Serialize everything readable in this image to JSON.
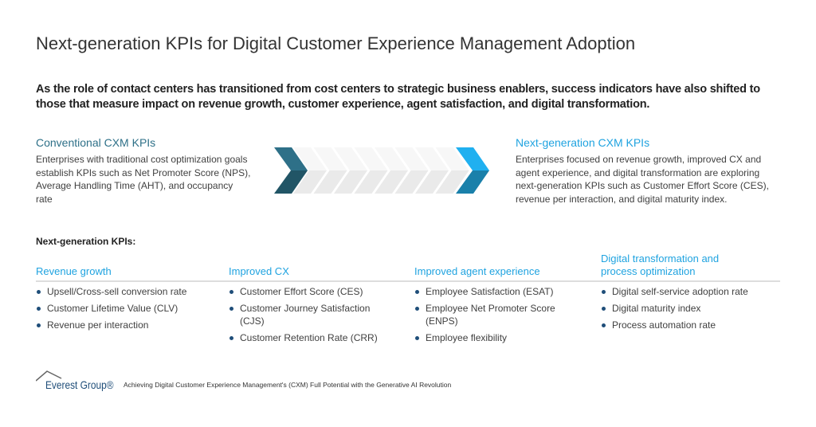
{
  "title": "Next-generation KPIs for Digital Customer Experience Management Adoption",
  "intro": "As the role of contact centers has transitioned from cost centers to strategic business enablers, success indicators have also shifted to those that measure impact on revenue growth, customer experience, agent satisfaction, and digital transformation.",
  "conventional": {
    "heading": "Conventional CXM KPIs",
    "body": "Enterprises with traditional cost optimization goals establish KPIs such as Net Promoter Score (NPS), Average Handling Time (AHT), and occupancy rate"
  },
  "next_generation": {
    "heading": "Next-generation CXM KPIs",
    "body": "Enterprises focused on revenue growth, improved CX and agent experience, and digital transformation are exploring next-generation KPIs such as Customer Effort Score (CES), revenue per interaction, and digital maturity index."
  },
  "colors": {
    "dark_teal": "#2E7088",
    "light_blue": "#1FA3E0",
    "bullet": "#1F4E79"
  },
  "kpis_label": "Next-generation  KPIs:",
  "columns": [
    {
      "heading": "Revenue  growth",
      "items": [
        "Upsell/Cross-sell conversion rate",
        "Customer Lifetime Value (CLV)",
        "Revenue per interaction"
      ]
    },
    {
      "heading": "Improved  CX",
      "items": [
        "Customer Effort Score (CES)",
        "Customer Journey Satisfaction (CJS)",
        "Customer Retention Rate (CRR)"
      ]
    },
    {
      "heading": "Improved  agent  experience",
      "items": [
        "Employee Satisfaction (ESAT)",
        "Employee Net Promoter Score (ENPS)",
        "Employee flexibility"
      ]
    },
    {
      "heading": "Digital  transformation  and process  optimization",
      "items": [
        "Digital self-service adoption rate",
        "Digital maturity index",
        "Process automation rate"
      ]
    }
  ],
  "footer": {
    "logo": "Everest Group®",
    "text": "Achieving Digital Customer Experience Management's (CXM) Full Potential with the Generative AI Revolution"
  }
}
